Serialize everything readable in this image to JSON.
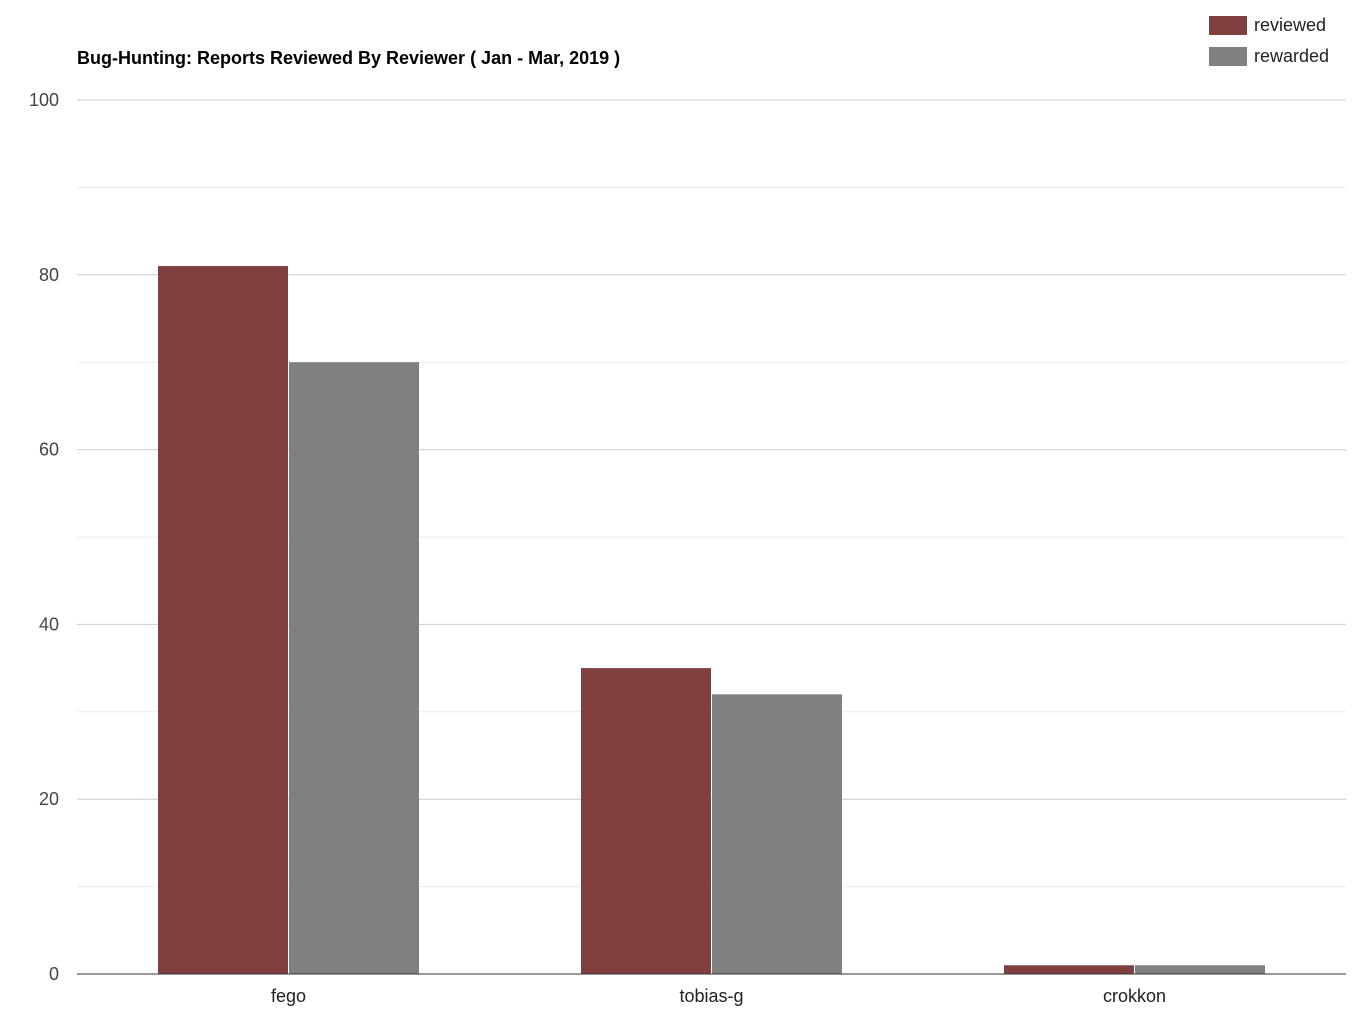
{
  "chart_data": {
    "type": "bar",
    "title": "Bug-Hunting: Reports Reviewed By Reviewer ( Jan - Mar, 2019 )",
    "categories": [
      "fego",
      "tobias-g",
      "crokkon"
    ],
    "series": [
      {
        "name": "reviewed",
        "values": [
          81,
          35,
          1
        ],
        "color": "#804040"
      },
      {
        "name": "rewarded",
        "values": [
          70,
          32,
          1
        ],
        "color": "#808080"
      }
    ],
    "ylim": [
      0,
      100
    ],
    "yticks": [
      0,
      20,
      40,
      60,
      80,
      100
    ],
    "grid": true,
    "legend_position": "top-right"
  }
}
